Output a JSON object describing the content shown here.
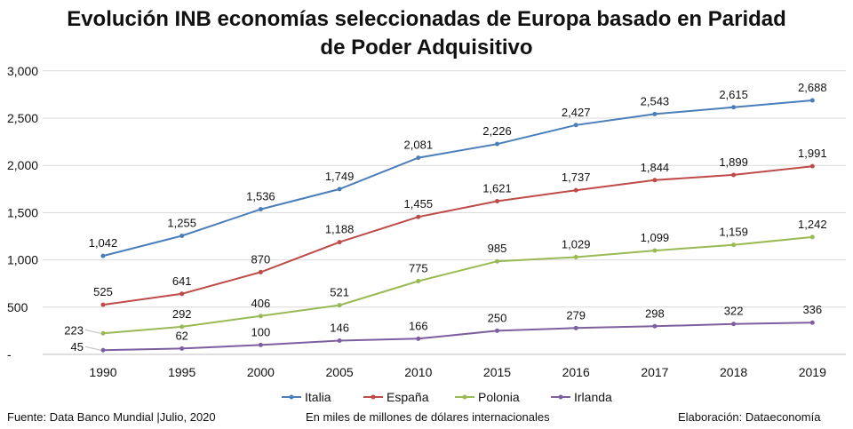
{
  "title_line1": "Evolución INB economías seleccionadas de Europa basado en Paridad",
  "title_line2": "de Poder Adquisitivo",
  "footer": {
    "source": "Fuente: Data Banco Mundial |Julio, 2020",
    "units": "En miles de millones de dólares internacionales",
    "credit": "Elaboración: Dataeconomía"
  },
  "chart_data": {
    "type": "line",
    "categories": [
      "1990",
      "1995",
      "2000",
      "2005",
      "2010",
      "2015",
      "2016",
      "2017",
      "2018",
      "2019"
    ],
    "ylim": [
      0,
      3000
    ],
    "y_ticks": [
      0,
      500,
      1000,
      1500,
      2000,
      2500,
      3000
    ],
    "y_tick_labels": [
      "-",
      "500",
      "1,000",
      "1,500",
      "2,000",
      "2,500",
      "3,000"
    ],
    "grid": "horizontal",
    "legend_position": "bottom",
    "series": [
      {
        "name": "Italia",
        "color": "#4a7ebb",
        "values": [
          1042,
          1255,
          1536,
          1749,
          2081,
          2226,
          2427,
          2543,
          2615,
          2688
        ],
        "labels": [
          "1,042",
          "1,255",
          "1,536",
          "1,749",
          "2,081",
          "2,226",
          "2,427",
          "2,543",
          "2,615",
          "2,688"
        ]
      },
      {
        "name": "España",
        "color": "#be4b48",
        "values": [
          525,
          641,
          870,
          1188,
          1455,
          1621,
          1737,
          1844,
          1899,
          1991
        ],
        "labels": [
          "525",
          "641",
          "870",
          "1,188",
          "1,455",
          "1,621",
          "1,737",
          "1,844",
          "1,899",
          "1,991"
        ]
      },
      {
        "name": "Polonia",
        "color": "#98b954",
        "values": [
          223,
          292,
          406,
          521,
          775,
          985,
          1029,
          1099,
          1159,
          1242
        ],
        "labels": [
          "223",
          "292",
          "406",
          "521",
          "775",
          "985",
          "1,029",
          "1,099",
          "1,159",
          "1,242"
        ]
      },
      {
        "name": "Irlanda",
        "color": "#7d5fa0",
        "values": [
          45,
          62,
          100,
          146,
          166,
          250,
          279,
          298,
          322,
          336
        ],
        "labels": [
          "45",
          "62",
          "100",
          "146",
          "166",
          "250",
          "279",
          "298",
          "322",
          "336"
        ]
      }
    ]
  }
}
